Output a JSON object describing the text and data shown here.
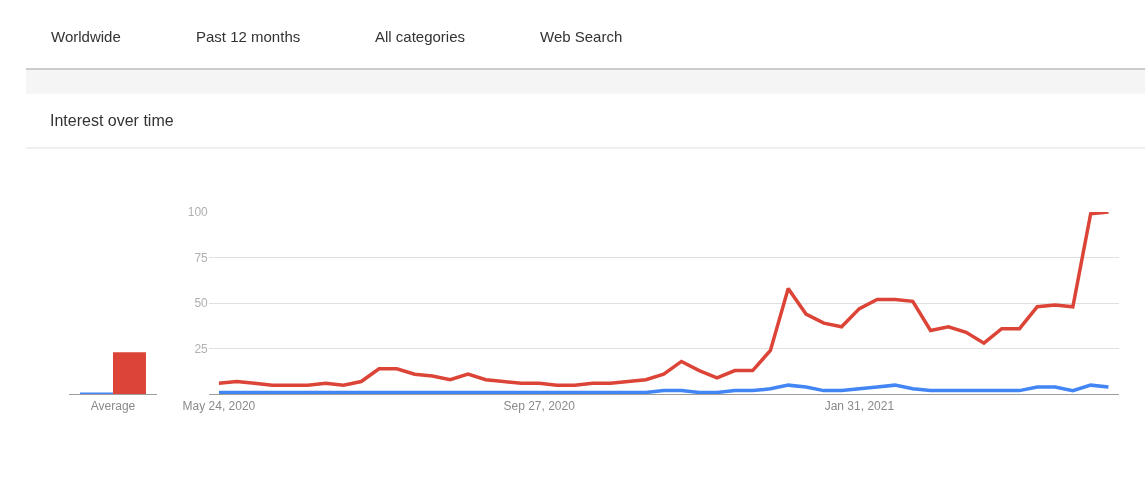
{
  "chart_data": [
    {
      "type": "bar",
      "title": "Interest over time",
      "annotations": [
        "Worldwide",
        "Past 12 months",
        "All categories",
        "Web Search"
      ],
      "categories": [
        "Average"
      ],
      "series": [
        {
          "color": "#4285f4",
          "values": [
            1
          ]
        },
        {
          "color": "#db4437",
          "values": [
            23
          ]
        }
      ],
      "ylim": [
        0,
        100
      ],
      "tick_labels": "x",
      "grid": false
    },
    {
      "type": "line",
      "x": [
        "2020-05-24",
        "2020-05-31",
        "2020-06-07",
        "2020-06-14",
        "2020-06-21",
        "2020-06-28",
        "2020-07-05",
        "2020-07-12",
        "2020-07-19",
        "2020-07-26",
        "2020-08-02",
        "2020-08-09",
        "2020-08-16",
        "2020-08-23",
        "2020-08-30",
        "2020-09-06",
        "2020-09-13",
        "2020-09-20",
        "2020-09-27",
        "2020-10-04",
        "2020-10-11",
        "2020-10-18",
        "2020-10-25",
        "2020-11-01",
        "2020-11-08",
        "2020-11-15",
        "2020-11-22",
        "2020-11-29",
        "2020-12-06",
        "2020-12-13",
        "2020-12-20",
        "2020-12-27",
        "2021-01-03",
        "2021-01-10",
        "2021-01-17",
        "2021-01-24",
        "2021-01-31",
        "2021-02-07",
        "2021-02-14",
        "2021-02-21",
        "2021-02-28",
        "2021-03-07",
        "2021-03-14",
        "2021-03-21",
        "2021-03-28",
        "2021-04-04",
        "2021-04-11",
        "2021-04-18",
        "2021-04-25",
        "2021-05-02",
        "2021-05-09"
      ],
      "series": [
        {
          "color": "#4285f4",
          "values": [
            1,
            1,
            1,
            1,
            1,
            1,
            1,
            1,
            1,
            1,
            1,
            1,
            1,
            1,
            1,
            1,
            1,
            1,
            1,
            1,
            1,
            1,
            1,
            1,
            1,
            2,
            2,
            1,
            1,
            2,
            2,
            3,
            5,
            4,
            2,
            2,
            3,
            4,
            5,
            3,
            2,
            2,
            2,
            2,
            2,
            2,
            4,
            4,
            2,
            5,
            4
          ]
        },
        {
          "color": "#db4437",
          "values": [
            6,
            7,
            6,
            5,
            5,
            5,
            6,
            5,
            7,
            14,
            14,
            11,
            10,
            8,
            11,
            8,
            7,
            6,
            6,
            5,
            5,
            6,
            6,
            7,
            8,
            11,
            18,
            13,
            9,
            13,
            13,
            24,
            58,
            44,
            39,
            37,
            47,
            52,
            52,
            51,
            35,
            37,
            34,
            28,
            36,
            36,
            48,
            49,
            48,
            99,
            100
          ]
        }
      ],
      "xlim": [
        "2020-05-20",
        "2021-05-13"
      ],
      "xticks": [
        {
          "value": "2020-05-24",
          "label": "May 24, 2020"
        },
        {
          "value": "2020-09-27",
          "label": "Sep 27, 2020"
        },
        {
          "value": "2021-01-31",
          "label": "Jan 31, 2021"
        }
      ],
      "ylim": [
        0,
        100
      ],
      "yticks": [
        25,
        50,
        75,
        100
      ],
      "grid": "y",
      "marker": "none",
      "line_style": "solid"
    }
  ]
}
